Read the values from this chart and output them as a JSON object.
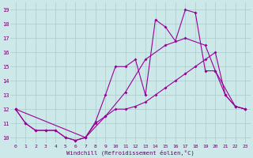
{
  "xlabel": "Windchill (Refroidissement éolien,°C)",
  "bg_color": "#cce8e8",
  "line_color": "#990099",
  "grid_color": "#aacccc",
  "xmin": -0.5,
  "xmax": 23.5,
  "ymin": 9.6,
  "ymax": 19.5,
  "yticks": [
    10,
    11,
    12,
    13,
    14,
    15,
    16,
    17,
    18,
    19
  ],
  "xticks": [
    0,
    1,
    2,
    3,
    4,
    5,
    6,
    7,
    8,
    9,
    10,
    11,
    12,
    13,
    14,
    15,
    16,
    17,
    18,
    19,
    20,
    21,
    22,
    23
  ],
  "line1_x": [
    0,
    1,
    2,
    3,
    4,
    5,
    6,
    7,
    8,
    9,
    10,
    11,
    12,
    13,
    14,
    15,
    16,
    17,
    18,
    19,
    20,
    21,
    22,
    23
  ],
  "line1_y": [
    12,
    11,
    10.5,
    10.5,
    10.5,
    10.0,
    9.8,
    10.0,
    11.0,
    11.5,
    12.0,
    12.0,
    12.2,
    12.5,
    13.0,
    13.5,
    14.0,
    14.5,
    15.0,
    15.5,
    16.0,
    13.0,
    12.2,
    12.0
  ],
  "line2_x": [
    0,
    7,
    9,
    11,
    13,
    15,
    17,
    19,
    20,
    22,
    23
  ],
  "line2_y": [
    12,
    10.0,
    11.5,
    13.2,
    15.5,
    16.5,
    17.0,
    16.5,
    14.7,
    12.2,
    12.0
  ],
  "line3_x": [
    0,
    1,
    2,
    3,
    4,
    5,
    6,
    7,
    8,
    9,
    10,
    11,
    12,
    13,
    14,
    15,
    16,
    17,
    18,
    19,
    20,
    21,
    22,
    23
  ],
  "line3_y": [
    12,
    11,
    10.5,
    10.5,
    10.5,
    10.0,
    9.8,
    10.0,
    11.1,
    13.0,
    15.0,
    15.0,
    15.5,
    13.0,
    18.3,
    17.8,
    16.8,
    19.0,
    18.8,
    14.7,
    14.7,
    13.0,
    12.2,
    12.0
  ]
}
